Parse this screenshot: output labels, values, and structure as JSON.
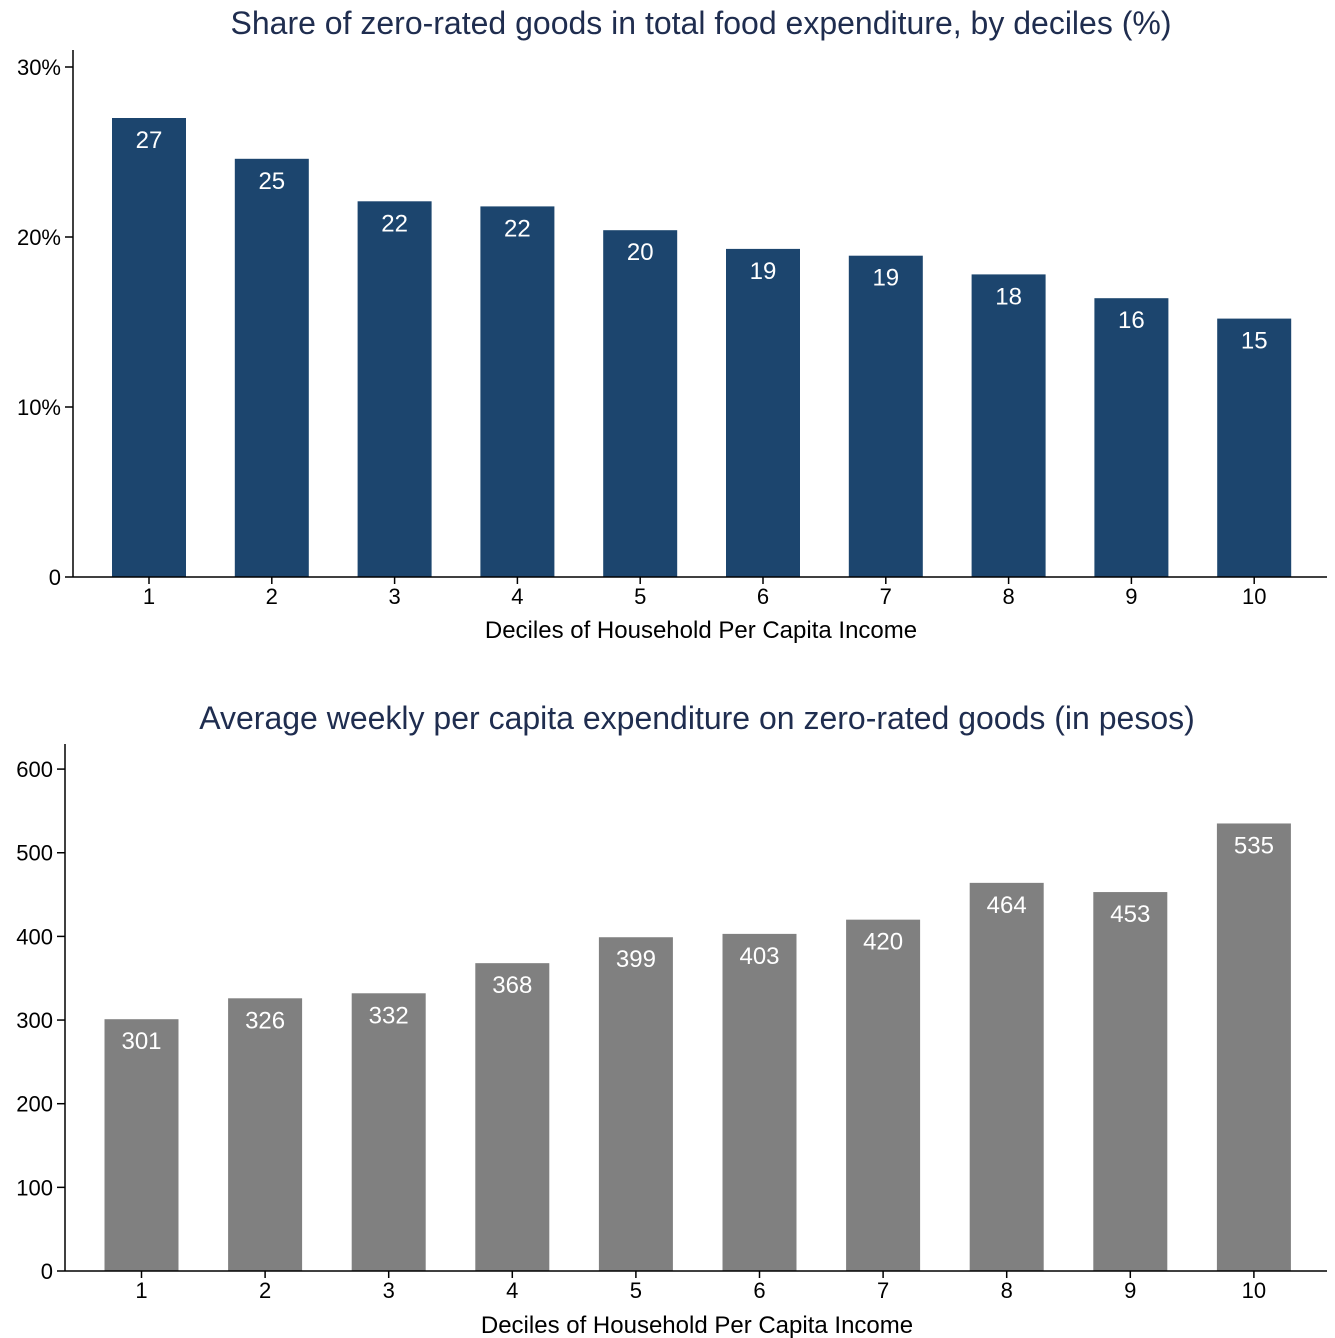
{
  "chart_data": [
    {
      "type": "bar",
      "title": "Share of zero-rated goods in total food expenditure, by deciles (%)",
      "xlabel": "Deciles of Household Per Capita Income",
      "ylabel": "",
      "categories": [
        "1",
        "2",
        "3",
        "4",
        "5",
        "6",
        "7",
        "8",
        "9",
        "10"
      ],
      "values": [
        27,
        24.6,
        22.1,
        21.8,
        20.4,
        19.3,
        18.9,
        17.8,
        16.4,
        15.2
      ],
      "data_labels": [
        "27",
        "25",
        "22",
        "22",
        "20",
        "19",
        "19",
        "18",
        "16",
        "15"
      ],
      "yticks": [
        0,
        10,
        20,
        30
      ],
      "ytick_labels": [
        "0",
        "10%",
        "20%",
        "30%"
      ],
      "ylim": [
        0,
        31
      ],
      "grid": false,
      "bar_color": "#1c456e"
    },
    {
      "type": "bar",
      "title": "Average weekly per capita expenditure on zero-rated goods (in pesos)",
      "xlabel": "Deciles of Household Per Capita Income",
      "ylabel": "",
      "categories": [
        "1",
        "2",
        "3",
        "4",
        "5",
        "6",
        "7",
        "8",
        "9",
        "10"
      ],
      "values": [
        301,
        326,
        332,
        368,
        399,
        403,
        420,
        464,
        453,
        535
      ],
      "data_labels": [
        "301",
        "326",
        "332",
        "368",
        "399",
        "403",
        "420",
        "464",
        "453",
        "535"
      ],
      "yticks": [
        0,
        100,
        200,
        300,
        400,
        500,
        600
      ],
      "ytick_labels": [
        "0",
        "100",
        "200",
        "300",
        "400",
        "500",
        "600"
      ],
      "ylim": [
        0,
        630
      ],
      "grid": false,
      "bar_color": "#808080"
    }
  ]
}
